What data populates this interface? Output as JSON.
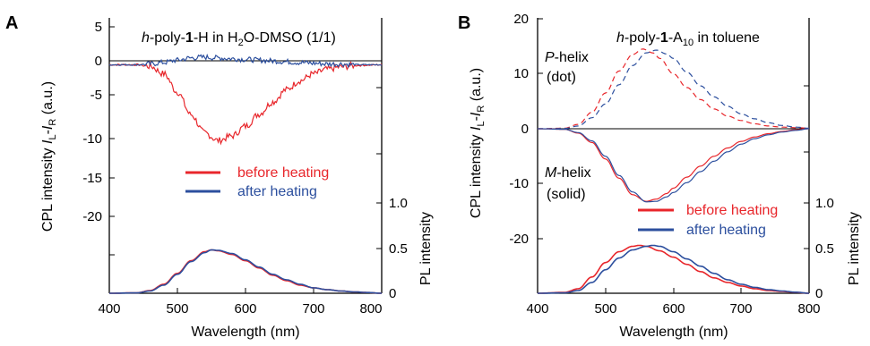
{
  "chart_data": [
    {
      "panel_label": "A",
      "type": "line",
      "title_parts": [
        "h",
        "-poly-",
        "1",
        "-H in H",
        "2",
        "O-DMSO (1/1)"
      ],
      "xlabel": "Wavelength (nm)",
      "ylabel_left_parts": [
        "CPL intensity ",
        "I",
        "L",
        "-",
        "I",
        "R",
        " (a.u.)"
      ],
      "ylabel_right": "PL intensity",
      "xlim": [
        400,
        800
      ],
      "xticks": [
        "400",
        "500",
        "600",
        "700",
        "800"
      ],
      "left_axis": {
        "ticks": [
          "5",
          "0",
          "-5",
          "-10",
          "-15",
          "-20"
        ]
      },
      "right_axis": {
        "ticks": [
          "1.0",
          "0.5",
          "0"
        ]
      },
      "legend": [
        "before heating",
        "after heating"
      ],
      "colors": {
        "before": "#e8262b",
        "after": "#2c4f9e"
      },
      "series": [
        {
          "name": "before heating",
          "axis": "cpl",
          "x": [
            400,
            440,
            460,
            480,
            500,
            520,
            540,
            560,
            580,
            600,
            620,
            640,
            660,
            680,
            700,
            720,
            740,
            760,
            780,
            800
          ],
          "y": [
            0,
            0,
            -0.2,
            -1.2,
            -3.6,
            -6.6,
            -9.0,
            -10.0,
            -9.4,
            -8.1,
            -6.5,
            -4.9,
            -3.3,
            -2.1,
            -1.2,
            -0.6,
            -0.3,
            -0.1,
            -0.05,
            0
          ]
        },
        {
          "name": "after heating",
          "axis": "cpl",
          "x": [
            400,
            440,
            460,
            480,
            500,
            520,
            540,
            560,
            580,
            600,
            620,
            640,
            660,
            680,
            700,
            720,
            740,
            760,
            780,
            800
          ],
          "y": [
            0,
            0,
            0.1,
            0.3,
            0.6,
            0.9,
            1.0,
            0.9,
            0.8,
            0.7,
            0.6,
            0.5,
            0.4,
            0.3,
            0.2,
            0.1,
            0.1,
            0,
            0,
            0
          ]
        },
        {
          "name": "PL before heating",
          "axis": "pl",
          "x": [
            400,
            440,
            460,
            480,
            500,
            520,
            540,
            550,
            560,
            580,
            600,
            620,
            640,
            660,
            680,
            700,
            720,
            740,
            760,
            780,
            800
          ],
          "y": [
            0,
            0.005,
            0.03,
            0.1,
            0.22,
            0.36,
            0.46,
            0.48,
            0.47,
            0.43,
            0.36,
            0.28,
            0.2,
            0.14,
            0.09,
            0.06,
            0.04,
            0.025,
            0.015,
            0.008,
            0
          ]
        },
        {
          "name": "PL after heating",
          "axis": "pl",
          "x": [
            400,
            440,
            460,
            480,
            500,
            520,
            540,
            550,
            560,
            580,
            600,
            620,
            640,
            660,
            680,
            700,
            720,
            740,
            760,
            780,
            800
          ],
          "y": [
            0,
            0.004,
            0.025,
            0.09,
            0.21,
            0.35,
            0.45,
            0.48,
            0.475,
            0.44,
            0.37,
            0.29,
            0.21,
            0.15,
            0.1,
            0.06,
            0.04,
            0.025,
            0.015,
            0.008,
            0
          ]
        }
      ]
    },
    {
      "panel_label": "B",
      "type": "line",
      "title_parts": [
        "h",
        "-poly-",
        "1",
        "-A",
        "10",
        " in toluene"
      ],
      "xlabel": "Wavelength (nm)",
      "ylabel_left_parts": [
        "CPL intensity ",
        "I",
        "L",
        "-",
        "I",
        "R",
        " (a.u.)"
      ],
      "ylabel_right": "PL intensity",
      "xlim": [
        400,
        800
      ],
      "xticks": [
        "400",
        "500",
        "600",
        "700",
        "800"
      ],
      "left_axis": {
        "ticks": [
          "20",
          "10",
          "0",
          "-10",
          "-20"
        ]
      },
      "right_axis": {
        "ticks": [
          "1.0",
          "0.5",
          "0"
        ]
      },
      "annotations": {
        "p_helix": [
          "P",
          "-helix",
          "(dot)"
        ],
        "m_helix": [
          "M",
          "-helix",
          "(solid)"
        ]
      },
      "legend": [
        "before heating",
        "after heating"
      ],
      "colors": {
        "before": "#e8262b",
        "after": "#2c4f9e"
      },
      "series": [
        {
          "name": "P-helix before heating",
          "axis": "cpl",
          "style": "dash",
          "x": [
            400,
            440,
            460,
            480,
            500,
            520,
            540,
            555,
            570,
            580,
            600,
            620,
            640,
            660,
            680,
            700,
            720,
            740,
            760,
            780,
            800
          ],
          "y": [
            0,
            0.1,
            0.8,
            3,
            6.5,
            10.5,
            13.5,
            14.5,
            13.8,
            12.8,
            10,
            7.5,
            5.3,
            3.6,
            2.3,
            1.5,
            0.9,
            0.5,
            0.3,
            0.2,
            0.1
          ]
        },
        {
          "name": "P-helix after heating",
          "axis": "cpl",
          "style": "dash",
          "x": [
            400,
            440,
            460,
            480,
            500,
            520,
            540,
            560,
            575,
            590,
            600,
            620,
            640,
            660,
            680,
            700,
            720,
            740,
            760,
            780,
            800
          ],
          "y": [
            0,
            0.05,
            0.5,
            2,
            4.5,
            8,
            11.5,
            13.8,
            14.3,
            13.6,
            12.8,
            10.3,
            7.8,
            5.8,
            4.1,
            2.7,
            1.8,
            1.1,
            0.6,
            0.3,
            0.1
          ]
        },
        {
          "name": "M-helix before heating",
          "axis": "cpl",
          "style": "solid",
          "x": [
            400,
            440,
            460,
            480,
            500,
            520,
            540,
            560,
            575,
            590,
            600,
            620,
            640,
            660,
            680,
            700,
            720,
            740,
            760,
            780,
            800
          ],
          "y": [
            0,
            -0.1,
            -0.8,
            -2.5,
            -5.5,
            -9,
            -12,
            -13.2,
            -12.8,
            -11.8,
            -10.8,
            -8.8,
            -6.8,
            -5,
            -3.5,
            -2.3,
            -1.5,
            -0.9,
            -0.5,
            -0.2,
            0
          ]
        },
        {
          "name": "M-helix after heating",
          "axis": "cpl",
          "style": "solid",
          "x": [
            400,
            440,
            460,
            480,
            500,
            520,
            540,
            560,
            575,
            590,
            600,
            620,
            640,
            660,
            680,
            700,
            720,
            740,
            760,
            780,
            800
          ],
          "y": [
            0,
            -0.1,
            -0.7,
            -2.2,
            -5,
            -8.5,
            -11.5,
            -13.3,
            -13.2,
            -12.4,
            -11.6,
            -9.8,
            -7.8,
            -5.9,
            -4.2,
            -2.8,
            -1.8,
            -1.1,
            -0.6,
            -0.3,
            0
          ]
        },
        {
          "name": "PL before heating",
          "axis": "pl",
          "x": [
            400,
            440,
            460,
            480,
            500,
            520,
            540,
            550,
            560,
            580,
            600,
            620,
            640,
            660,
            680,
            700,
            720,
            740,
            760,
            780,
            800
          ],
          "y": [
            0,
            0.01,
            0.05,
            0.18,
            0.34,
            0.46,
            0.52,
            0.53,
            0.52,
            0.47,
            0.4,
            0.32,
            0.24,
            0.17,
            0.12,
            0.08,
            0.05,
            0.03,
            0.02,
            0.01,
            0
          ]
        },
        {
          "name": "PL after heating",
          "axis": "pl",
          "x": [
            400,
            440,
            460,
            480,
            500,
            520,
            540,
            560,
            570,
            580,
            600,
            620,
            640,
            660,
            680,
            700,
            720,
            740,
            760,
            780,
            800
          ],
          "y": [
            0,
            0.005,
            0.03,
            0.12,
            0.26,
            0.39,
            0.48,
            0.52,
            0.53,
            0.52,
            0.46,
            0.38,
            0.3,
            0.22,
            0.15,
            0.1,
            0.065,
            0.04,
            0.025,
            0.012,
            0
          ]
        }
      ]
    }
  ]
}
